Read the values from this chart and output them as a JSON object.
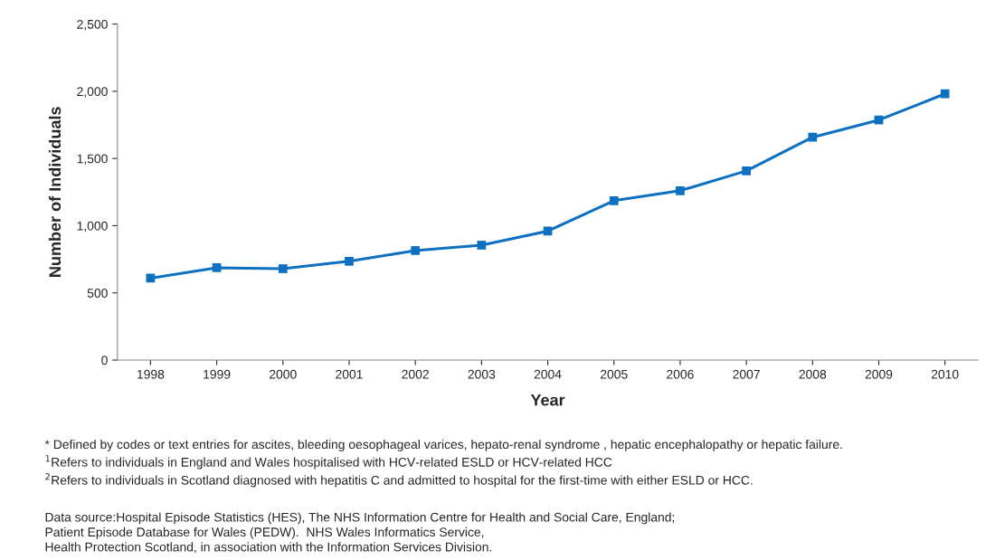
{
  "chart_data": {
    "type": "line",
    "xlabel": "Year",
    "ylabel": "Number of Individuals",
    "categories": [
      "1998",
      "1999",
      "2000",
      "2001",
      "2002",
      "2003",
      "2004",
      "2005",
      "2006",
      "2007",
      "2008",
      "2009",
      "2010"
    ],
    "series": [
      {
        "color": "#0e70c0",
        "values": [
          610,
          687,
          680,
          735,
          815,
          855,
          960,
          1186,
          1260,
          1408,
          1658,
          1786,
          1981
        ]
      }
    ],
    "ylim": [
      0,
      2500
    ],
    "yticks": [
      {
        "value": 0,
        "label": "0"
      },
      {
        "value": 500,
        "label": "500"
      },
      {
        "value": 1000,
        "label": "1,000"
      },
      {
        "value": 1500,
        "label": "1,500"
      },
      {
        "value": 2000,
        "label": "2,000"
      },
      {
        "value": 2500,
        "label": "2,500"
      }
    ],
    "grid": false,
    "marker": "square",
    "line_style": "solid",
    "annotations": [
      "* Defined by codes or text entries for ascites, bleeding oesophageal varices, hepato-renal syndrome , hepatic encephalopathy or hepatic failure.\n$^{1}$Refers to individuals in England and Wales hospitalised with HCV-related ESLD or HCV-related HCC\n$^{2}$Refers to individuals in Scotland diagnosed with hepatitis C and admitted to hospital for the first-time with either ESLD or HCC.",
      "Data source:Hospital Episode Statistics (HES), The NHS Information Centre for Health and Social Care, England;\nPatient Episode Database for Wales (PEDW).  NHS Wales Informatics Service,\nHealth Protection Scotland, in association with the Information Services Division."
    ]
  }
}
